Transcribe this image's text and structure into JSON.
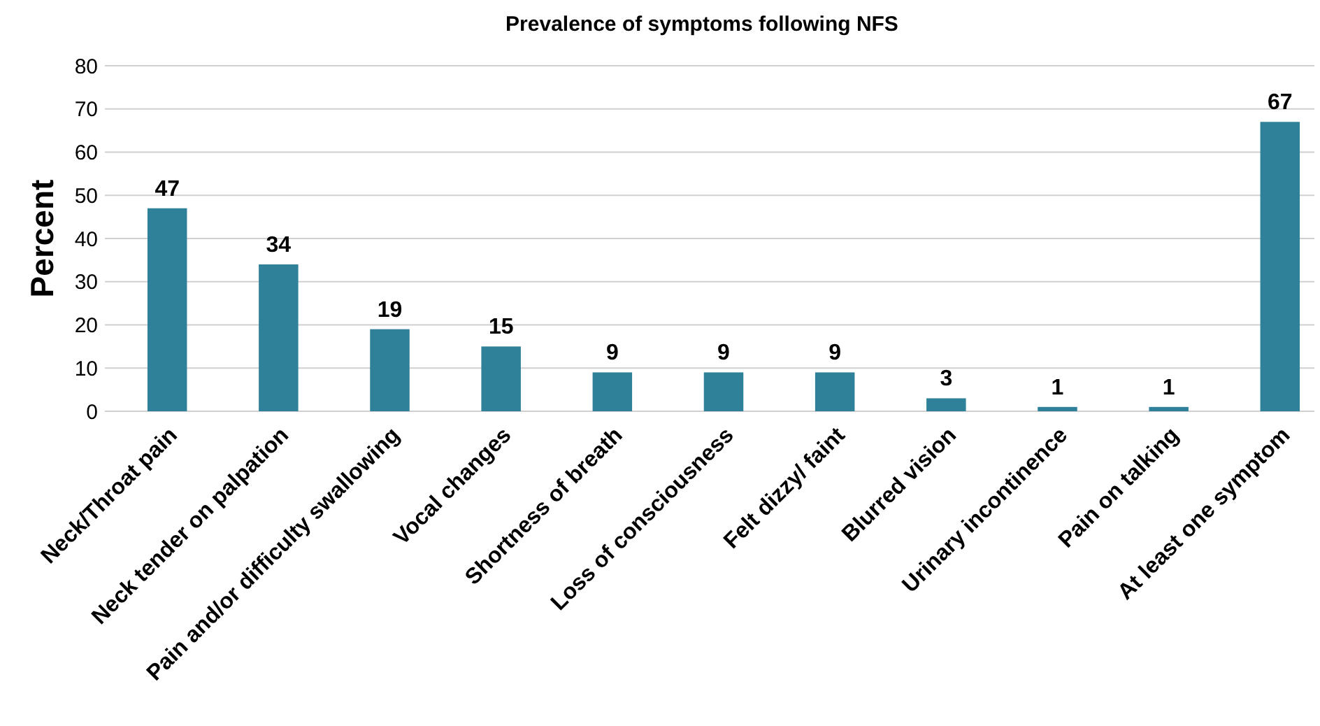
{
  "chart_data": {
    "type": "bar",
    "title": "Prevalence of symptoms following NFS",
    "ylabel": "Percent",
    "categories": [
      "Neck/Throat pain",
      "Neck tender on palpation",
      "Pain and/or difficulty swallowing",
      "Vocal changes",
      "Shortness of breath",
      "Loss of consciousness",
      "Felt dizzy/ faint",
      "Blurred vision",
      "Urinary incontinence",
      "Pain on talking",
      "At least one symptom"
    ],
    "values": [
      47,
      34,
      19,
      15,
      9,
      9,
      9,
      3,
      1,
      1,
      67
    ],
    "color": "#2f8199",
    "ylim": [
      0,
      80
    ],
    "yticks": [
      0,
      10,
      20,
      30,
      40,
      50,
      60,
      70,
      80
    ],
    "grid": "y",
    "data_labels": true
  }
}
